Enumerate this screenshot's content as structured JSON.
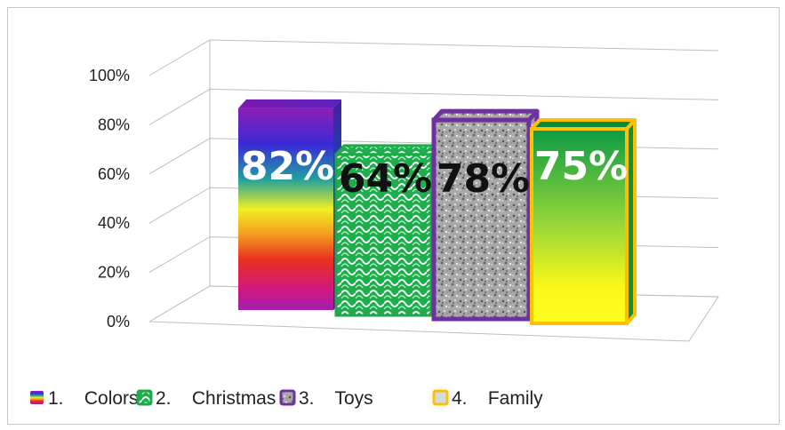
{
  "chart_data": {
    "type": "bar",
    "style": "3d-column",
    "categories": [
      "1.    Colors",
      "2.    Christmas",
      "3.    Toys",
      "4.    Family"
    ],
    "values": [
      82,
      64,
      78,
      75
    ],
    "value_labels": [
      "82%",
      "64%",
      "78%",
      "75%"
    ],
    "y_ticks": [
      "0%",
      "20%",
      "40%",
      "60%",
      "80%",
      "100%"
    ],
    "ylim": [
      0,
      100
    ],
    "grid": true,
    "legend": "bottom",
    "colors": {
      "label_white": "#ffffff",
      "label_black": "#111111",
      "christmas_border": "#1fa84a",
      "toys_border": "#7030a0",
      "family_border": "#ffc000",
      "grid": "#bfbfbf"
    }
  }
}
